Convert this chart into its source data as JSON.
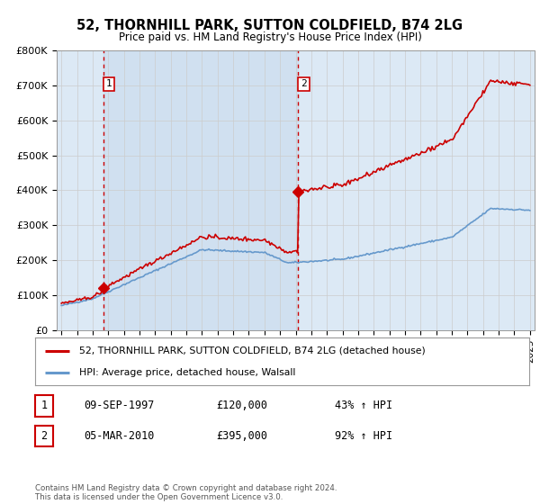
{
  "title": "52, THORNHILL PARK, SUTTON COLDFIELD, B74 2LG",
  "subtitle": "Price paid vs. HM Land Registry's House Price Index (HPI)",
  "plot_bg_color": "#dce9f5",
  "red_line_color": "#cc0000",
  "blue_line_color": "#6699cc",
  "marker_color": "#cc0000",
  "vline_color": "#cc0000",
  "grid_color": "#cccccc",
  "legend_label_red": "52, THORNHILL PARK, SUTTON COLDFIELD, B74 2LG (detached house)",
  "legend_label_blue": "HPI: Average price, detached house, Walsall",
  "footnote": "Contains HM Land Registry data © Crown copyright and database right 2024.\nThis data is licensed under the Open Government Licence v3.0.",
  "sale1_label": "1",
  "sale1_date": "09-SEP-1997",
  "sale1_price": "£120,000",
  "sale1_hpi": "43% ↑ HPI",
  "sale2_label": "2",
  "sale2_date": "05-MAR-2010",
  "sale2_price": "£395,000",
  "sale2_hpi": "92% ↑ HPI",
  "ylim": [
    0,
    800000
  ],
  "yticks": [
    0,
    100000,
    200000,
    300000,
    400000,
    500000,
    600000,
    700000,
    800000
  ],
  "ytick_labels": [
    "£0",
    "£100K",
    "£200K",
    "£300K",
    "£400K",
    "£500K",
    "£600K",
    "£700K",
    "£800K"
  ],
  "sale1_x": 1997.7,
  "sale1_y": 120000,
  "sale2_x": 2010.17,
  "sale2_y": 395000,
  "xlim_left": 1994.7,
  "xlim_right": 2025.3
}
